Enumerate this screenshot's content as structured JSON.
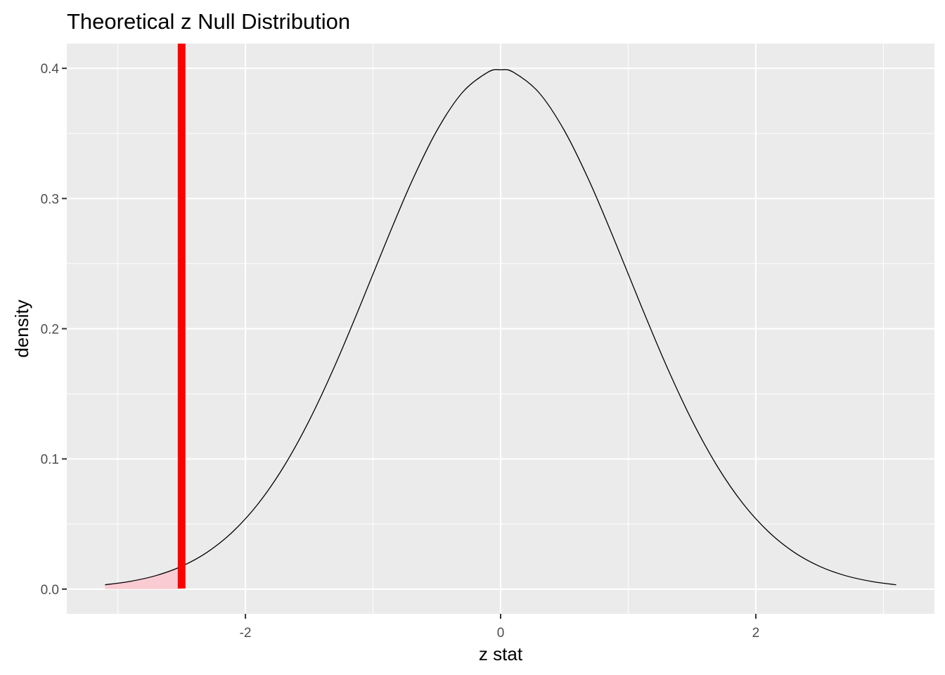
{
  "chart_data": {
    "type": "line",
    "title": "Theoretical z Null Distribution",
    "xlabel": "z stat",
    "ylabel": "density",
    "xlim": [
      -3.4,
      3.4
    ],
    "ylim": [
      -0.019,
      0.419
    ],
    "x_ticks": [
      {
        "value": -2,
        "label": "-2"
      },
      {
        "value": 0,
        "label": "0"
      },
      {
        "value": 2,
        "label": "2"
      }
    ],
    "y_ticks": [
      {
        "value": 0.0,
        "label": "0.0"
      },
      {
        "value": 0.1,
        "label": "0.1"
      },
      {
        "value": 0.2,
        "label": "0.2"
      },
      {
        "value": 0.3,
        "label": "0.3"
      },
      {
        "value": 0.4,
        "label": "0.4"
      }
    ],
    "x_minor_breaks": [
      -3,
      -1,
      1,
      3
    ],
    "y_minor_breaks": [
      0.05,
      0.15,
      0.25,
      0.35
    ],
    "grid": true,
    "background_color": "#ebebeb",
    "grid_color": "#ffffff",
    "curve_color": "#000000",
    "series": [
      {
        "x": [
          -3.1,
          -2.9,
          -2.7,
          -2.5,
          -2.3,
          -2.1,
          -1.9,
          -1.7,
          -1.5,
          -1.3,
          -1.1,
          -0.9,
          -0.7,
          -0.5,
          -0.3,
          -0.1,
          0.0,
          0.1,
          0.3,
          0.5,
          0.7,
          0.9,
          1.1,
          1.3,
          1.5,
          1.7,
          1.9,
          2.1,
          2.3,
          2.5,
          2.7,
          2.9,
          3.1
        ],
        "y": [
          0.0033,
          0.006,
          0.0104,
          0.0175,
          0.0283,
          0.044,
          0.0656,
          0.094,
          0.1295,
          0.1714,
          0.2179,
          0.2661,
          0.3123,
          0.3521,
          0.3814,
          0.397,
          0.3989,
          0.397,
          0.3814,
          0.3521,
          0.3123,
          0.2661,
          0.2179,
          0.1714,
          0.1295,
          0.094,
          0.0656,
          0.044,
          0.0283,
          0.0175,
          0.0104,
          0.006,
          0.0033
        ]
      }
    ],
    "observed_stat": -2.5,
    "observed_stat_color": "#ff0000",
    "shade_direction": "less",
    "shade_color": "#ffc0cb"
  }
}
